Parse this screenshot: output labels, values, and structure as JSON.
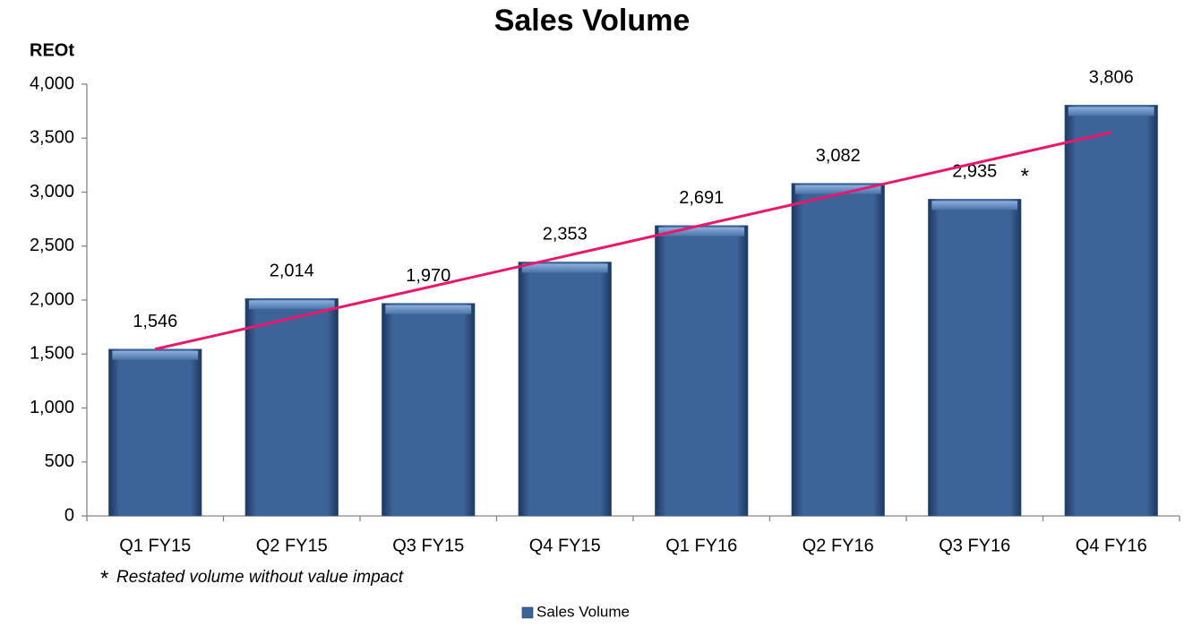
{
  "chart_data": {
    "type": "bar",
    "title": "Sales Volume",
    "y_label": "REOt",
    "categories": [
      "Q1 FY15",
      "Q2 FY15",
      "Q3 FY15",
      "Q4 FY15",
      "Q1 FY16",
      "Q2 FY16",
      "Q3 FY16",
      "Q4 FY16"
    ],
    "series": [
      {
        "name": "Sales Volume",
        "color": "#3d6499",
        "values": [
          1546,
          2014,
          1970,
          2353,
          2691,
          3082,
          2935,
          3806
        ],
        "value_labels": [
          "1,546",
          "2,014",
          "1,970",
          "2,353",
          "2,691",
          "3,082",
          "2,935",
          "3,806"
        ]
      }
    ],
    "ylim": [
      0,
      4000
    ],
    "yticks": [
      0,
      500,
      {
        "value": 1000,
        "label": "1,000"
      },
      {
        "value": 1500,
        "label": "1,500"
      },
      {
        "value": 2000,
        "label": "2,000"
      },
      {
        "value": 2500,
        "label": "2,500"
      },
      {
        "value": 3000,
        "label": "3,000"
      },
      {
        "value": 3500,
        "label": "3,500"
      },
      {
        "value": 4000,
        "label": "4,000"
      }
    ],
    "grid": false,
    "trendline": {
      "kind": "linear",
      "color": "#e8186d"
    },
    "annotations": [
      {
        "text": "*",
        "category": "Q3 FY16"
      }
    ],
    "footnote": {
      "marker": "*",
      "text": "Restated volume without value impact"
    },
    "legend": "bottom"
  }
}
